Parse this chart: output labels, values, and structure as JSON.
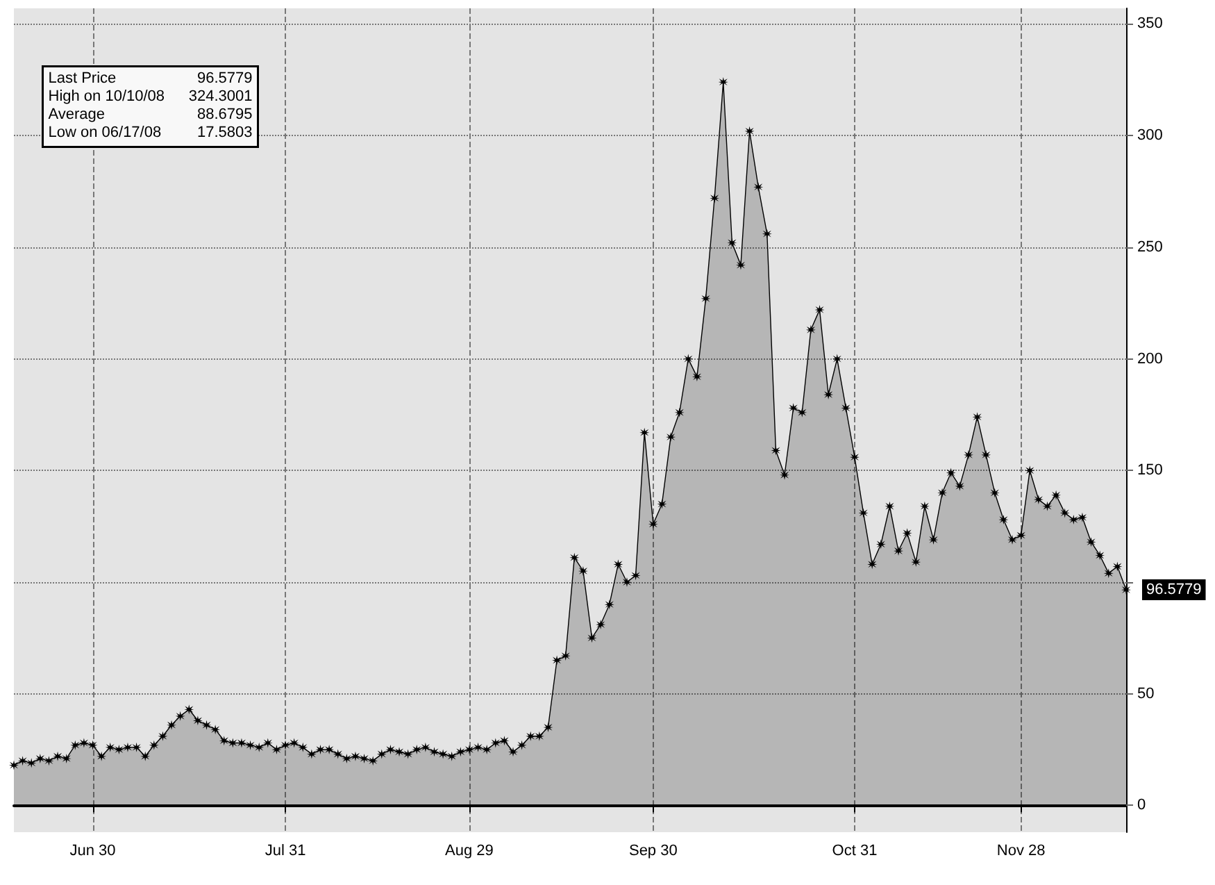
{
  "chart_data": {
    "type": "area",
    "categories": [
      null,
      null,
      null,
      null,
      null,
      null,
      null,
      null,
      null,
      "Jun 30",
      null,
      null,
      null,
      null,
      null,
      null,
      null,
      null,
      null,
      null,
      null,
      null,
      null,
      null,
      null,
      null,
      null,
      null,
      null,
      null,
      null,
      "Jul 31",
      null,
      null,
      null,
      null,
      null,
      null,
      null,
      null,
      null,
      null,
      null,
      null,
      null,
      null,
      null,
      null,
      null,
      null,
      null,
      null,
      "Aug 29",
      null,
      null,
      null,
      null,
      null,
      null,
      null,
      null,
      null,
      null,
      null,
      null,
      null,
      null,
      null,
      null,
      null,
      null,
      null,
      null,
      "Sep 30",
      null,
      null,
      null,
      null,
      null,
      null,
      null,
      null,
      null,
      null,
      null,
      null,
      null,
      null,
      null,
      null,
      null,
      null,
      null,
      null,
      null,
      null,
      "Oct 31",
      null,
      null,
      null,
      null,
      null,
      null,
      null,
      null,
      null,
      null,
      null,
      null,
      null,
      null,
      null,
      null,
      null,
      null,
      "Nov 28",
      null,
      null,
      null,
      null,
      null,
      null,
      null,
      null,
      null,
      null,
      null,
      null
    ],
    "series": [
      {
        "color": "#000000",
        "values": [
          18,
          20,
          19,
          21,
          20,
          22,
          21,
          27,
          28,
          27,
          22,
          26,
          25,
          26,
          26,
          22,
          27,
          31,
          36,
          40,
          43,
          38,
          36,
          34,
          29,
          28,
          28,
          27,
          26,
          28,
          25,
          27,
          28,
          26,
          23,
          25,
          25,
          23,
          21,
          22,
          21,
          20,
          23,
          25,
          24,
          23,
          25,
          26,
          24,
          23,
          22,
          24,
          25,
          26,
          25,
          28,
          29,
          24,
          27,
          31,
          31,
          35,
          65,
          67,
          111,
          105,
          75,
          81,
          90,
          108,
          100,
          103,
          167,
          126,
          135,
          165,
          176,
          200,
          192,
          227,
          272,
          324,
          252,
          242,
          302,
          277,
          256,
          159,
          148,
          178,
          176,
          213,
          222,
          184,
          200,
          178,
          156,
          131,
          108,
          117,
          134,
          114,
          122,
          109,
          134,
          119,
          140,
          149,
          143,
          157,
          174,
          157,
          140,
          128,
          119,
          121,
          150,
          137,
          134,
          139,
          131,
          128,
          129,
          118,
          112,
          104,
          107,
          96.5779
        ],
        "value_labels": [
          null,
          null,
          null,
          null,
          null,
          null,
          null,
          null,
          null,
          null,
          null,
          null,
          null,
          null,
          null,
          null,
          null,
          null,
          null,
          null,
          null,
          null,
          null,
          null,
          null,
          null,
          null,
          null,
          null,
          null,
          null,
          null,
          null,
          null,
          null,
          null,
          null,
          null,
          null,
          null,
          null,
          null,
          null,
          null,
          null,
          null,
          null,
          null,
          null,
          null,
          null,
          null,
          null,
          null,
          null,
          null,
          null,
          null,
          null,
          null,
          null,
          null,
          null,
          null,
          null,
          null,
          null,
          null,
          null,
          null,
          null,
          null,
          null,
          null,
          null,
          null,
          null,
          null,
          null,
          null,
          null,
          null,
          null,
          null,
          null,
          null,
          null,
          null,
          null,
          null,
          null,
          null,
          null,
          null,
          null,
          null,
          null,
          null,
          null,
          null,
          null,
          null,
          null,
          null,
          null,
          null,
          null,
          null,
          null,
          null,
          null,
          null,
          null,
          null,
          null,
          null,
          null,
          null,
          null,
          null,
          null,
          null,
          null,
          null,
          null,
          null,
          null,
          "96.5779"
        ]
      }
    ],
    "ylim": [
      -12,
      357
    ],
    "yticks": [
      0,
      50,
      {
        "value": 100,
        "label": null
      },
      150,
      200,
      250,
      300,
      350
    ],
    "grid": true,
    "marker": "star",
    "line_style": "solid",
    "annotations": [
      "Last Price 96.5779",
      "High on 10/10/08 324.3001",
      "Average 88.6795",
      "Low on 06/17/08 17.5803"
    ]
  }
}
